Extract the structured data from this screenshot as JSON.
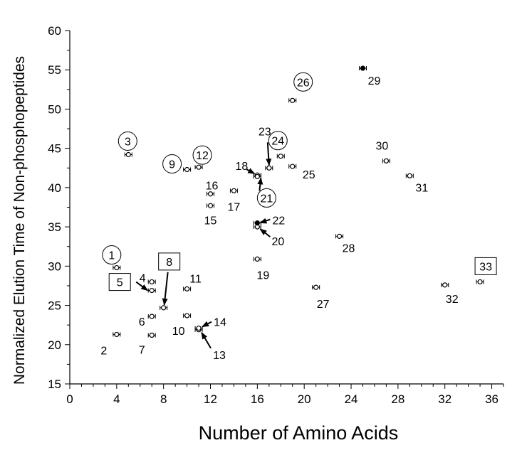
{
  "chart_data": {
    "type": "scatter",
    "title": "",
    "xlabel": "Number of Amino Acids",
    "ylabel": "Normalized Elution Time of Non-phosphopeptides",
    "xlim": [
      0,
      37
    ],
    "ylim": [
      15,
      60
    ],
    "xticks": [
      "0",
      "4",
      "8",
      "12",
      "16",
      "20",
      "24",
      "28",
      "32",
      "36"
    ],
    "yticks": [
      "15",
      "20",
      "25",
      "30",
      "35",
      "40",
      "45",
      "50",
      "55",
      "60"
    ],
    "grid": false,
    "legend": "none",
    "points": [
      {
        "label": "1",
        "x": 4,
        "y": 29.8,
        "frame": "circle"
      },
      {
        "label": "2",
        "x": 4,
        "y": 21.3,
        "frame": "none"
      },
      {
        "label": "3",
        "x": 5,
        "y": 44.2,
        "frame": "circle"
      },
      {
        "label": "4",
        "x": 7,
        "y": 28.0,
        "frame": "none"
      },
      {
        "label": "5",
        "x": 7,
        "y": 26.9,
        "frame": "box"
      },
      {
        "label": "6",
        "x": 7,
        "y": 23.6,
        "frame": "none"
      },
      {
        "label": "7",
        "x": 7,
        "y": 21.2,
        "frame": "none"
      },
      {
        "label": "8",
        "x": 8,
        "y": 24.7,
        "frame": "box"
      },
      {
        "label": "9",
        "x": 10,
        "y": 42.3,
        "frame": "circle"
      },
      {
        "label": "10",
        "x": 10,
        "y": 23.7,
        "frame": "none"
      },
      {
        "label": "11",
        "x": 10,
        "y": 27.1,
        "frame": "none"
      },
      {
        "label": "12",
        "x": 11,
        "y": 42.6,
        "frame": "circle"
      },
      {
        "label": "13",
        "x": 11,
        "y": 21.9,
        "frame": "none"
      },
      {
        "label": "14",
        "x": 11,
        "y": 22.1,
        "frame": "none"
      },
      {
        "label": "15",
        "x": 12,
        "y": 37.7,
        "frame": "none"
      },
      {
        "label": "16",
        "x": 12,
        "y": 39.2,
        "frame": "none"
      },
      {
        "label": "17",
        "x": 14,
        "y": 39.6,
        "frame": "none"
      },
      {
        "label": "18",
        "x": 16,
        "y": 41.6,
        "frame": "none"
      },
      {
        "label": "19",
        "x": 16,
        "y": 30.9,
        "frame": "none"
      },
      {
        "label": "20",
        "x": 16,
        "y": 35.0,
        "frame": "none"
      },
      {
        "label": "21",
        "x": 16,
        "y": 41.4,
        "frame": "circle"
      },
      {
        "label": "22",
        "x": 16,
        "y": 35.5,
        "frame": "none"
      },
      {
        "label": "23",
        "x": 17,
        "y": 42.5,
        "frame": "none"
      },
      {
        "label": "24",
        "x": 18,
        "y": 44.0,
        "frame": "circle"
      },
      {
        "label": "25",
        "x": 19,
        "y": 42.7,
        "frame": "none"
      },
      {
        "label": "26",
        "x": 19,
        "y": 51.1,
        "frame": "circle"
      },
      {
        "label": "27",
        "x": 21,
        "y": 27.3,
        "frame": "none"
      },
      {
        "label": "28",
        "x": 23,
        "y": 33.8,
        "frame": "none"
      },
      {
        "label": "29",
        "x": 25,
        "y": 55.2,
        "frame": "none"
      },
      {
        "label": "30",
        "x": 27,
        "y": 43.4,
        "frame": "none"
      },
      {
        "label": "31",
        "x": 29,
        "y": 41.5,
        "frame": "none"
      },
      {
        "label": "32",
        "x": 32,
        "y": 27.6,
        "frame": "none"
      },
      {
        "label": "33",
        "x": 35,
        "y": 28.0,
        "frame": "box"
      }
    ]
  }
}
